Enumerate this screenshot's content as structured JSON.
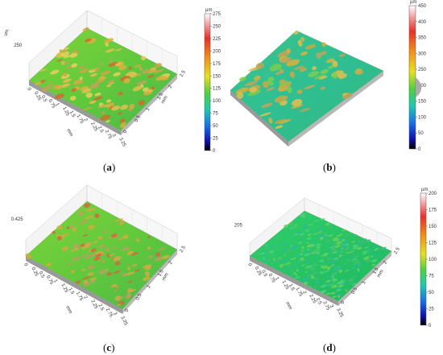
{
  "panels": [
    {
      "id": "a",
      "caption_open": "(",
      "caption_letter": "a",
      "caption_close": ")",
      "z_tick": "250",
      "z_unit": "um",
      "x_ticks": [
        "0",
        "0.25",
        "0.5",
        "0.75",
        "1",
        "1.25",
        "1.5",
        "1.75",
        "2",
        "2.25",
        "2.5",
        "2.75",
        "3",
        "3.25"
      ],
      "x_label": "mm",
      "y_ticks": [
        "0",
        "0.5",
        "1",
        "1.5",
        "2",
        "2.5"
      ],
      "y_label": "mm",
      "colorbar": {
        "unit": "µm",
        "ticks": [
          "275",
          "250",
          "225",
          "200",
          "175",
          "150",
          "125",
          "100",
          "75",
          "50",
          "25",
          "0"
        ]
      }
    },
    {
      "id": "b",
      "caption_open": "(",
      "caption_letter": "b",
      "caption_close": ")",
      "colorbar": {
        "unit": "µm",
        "ticks": [
          "450",
          "400",
          "350",
          "300",
          "250",
          "200",
          "150",
          "100",
          "50",
          "0"
        ]
      }
    },
    {
      "id": "c",
      "caption_open": "(",
      "caption_letter": "c",
      "caption_close": ")",
      "z_tick": "0.425",
      "x_ticks": [
        "0",
        "0.25",
        "0.5",
        "0.75",
        "1",
        "1.25",
        "1.5",
        "1.75",
        "2",
        "2.25",
        "2.5",
        "2.75",
        "3",
        "3.25"
      ],
      "x_label": "mm",
      "y_ticks": [
        "0",
        "0.5",
        "1",
        "1.5",
        "2",
        "2.5"
      ],
      "y_label": "mm"
    },
    {
      "id": "d",
      "caption_open": "(",
      "caption_letter": "d",
      "caption_close": ")",
      "z_tick": "205",
      "x_ticks": [
        "0",
        "0.25",
        "0.5",
        "0.75",
        "1",
        "1.25",
        "1.5",
        "1.75",
        "2",
        "2.25",
        "2.5",
        "2.75",
        "3",
        "3.25"
      ],
      "x_label": "mm",
      "y_ticks": [
        "0",
        "0.5",
        "1",
        "1.5",
        "2",
        "2.5"
      ],
      "y_label": "mm",
      "colorbar": {
        "unit": "µm",
        "ticks": [
          "200",
          "175",
          "150",
          "125",
          "100",
          "75",
          "50",
          "25",
          "0"
        ]
      }
    }
  ]
}
